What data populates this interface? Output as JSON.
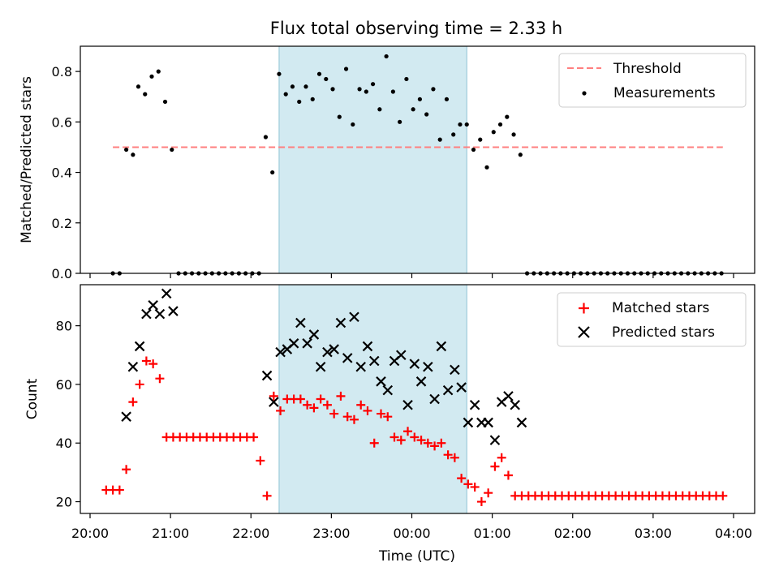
{
  "title": "Flux total observing time = 2.33 h",
  "colors": {
    "threshold": "#ff7f7f",
    "measurement": "#000000",
    "matched": "#ff0000",
    "predicted": "#000000",
    "window": "#add8e6"
  },
  "chart_data": [
    {
      "type": "scatter",
      "ylabel": "Matched/Predicted stars",
      "xlabel": "",
      "ylim": [
        0,
        0.9
      ],
      "yticks": [
        "0.0",
        "0.2",
        "0.4",
        "0.6",
        "0.8"
      ],
      "xlim": [
        "20:00",
        "04:00"
      ],
      "observing_window": [
        "22:21",
        "00:41"
      ],
      "legend": {
        "position": "top-right",
        "entries": [
          "Threshold",
          "Measurements"
        ]
      },
      "threshold": {
        "name": "Threshold",
        "y": 0.5,
        "x": [
          "20:17",
          "03:52"
        ]
      },
      "series": [
        {
          "name": "Measurements",
          "points": [
            [
              "20:17",
              0.0
            ],
            [
              "20:22",
              0.0
            ],
            [
              "20:27",
              0.49
            ],
            [
              "20:32",
              0.47
            ],
            [
              "20:36",
              0.74
            ],
            [
              "20:41",
              0.71
            ],
            [
              "20:46",
              0.78
            ],
            [
              "20:51",
              0.8
            ],
            [
              "20:56",
              0.68
            ],
            [
              "21:01",
              0.49
            ],
            [
              "21:06",
              0.0
            ],
            [
              "21:11",
              0.0
            ],
            [
              "21:16",
              0.0
            ],
            [
              "21:21",
              0.0
            ],
            [
              "21:26",
              0.0
            ],
            [
              "21:31",
              0.0
            ],
            [
              "21:36",
              0.0
            ],
            [
              "21:41",
              0.0
            ],
            [
              "21:46",
              0.0
            ],
            [
              "21:51",
              0.0
            ],
            [
              "21:56",
              0.0
            ],
            [
              "22:01",
              0.0
            ],
            [
              "22:06",
              0.0
            ],
            [
              "22:11",
              0.54
            ],
            [
              "22:16",
              0.4
            ],
            [
              "22:21",
              0.79
            ],
            [
              "22:26",
              0.71
            ],
            [
              "22:31",
              0.74
            ],
            [
              "22:36",
              0.68
            ],
            [
              "22:41",
              0.74
            ],
            [
              "22:46",
              0.69
            ],
            [
              "22:51",
              0.79
            ],
            [
              "22:56",
              0.77
            ],
            [
              "23:01",
              0.73
            ],
            [
              "23:06",
              0.62
            ],
            [
              "23:11",
              0.81
            ],
            [
              "23:16",
              0.59
            ],
            [
              "23:21",
              0.73
            ],
            [
              "23:26",
              0.72
            ],
            [
              "23:31",
              0.75
            ],
            [
              "23:36",
              0.65
            ],
            [
              "23:41",
              0.86
            ],
            [
              "23:46",
              0.72
            ],
            [
              "23:51",
              0.6
            ],
            [
              "23:56",
              0.77
            ],
            [
              "00:01",
              0.65
            ],
            [
              "00:06",
              0.69
            ],
            [
              "00:11",
              0.63
            ],
            [
              "00:16",
              0.73
            ],
            [
              "00:21",
              0.53
            ],
            [
              "00:26",
              0.69
            ],
            [
              "00:31",
              0.55
            ],
            [
              "00:36",
              0.59
            ],
            [
              "00:41",
              0.59
            ],
            [
              "00:46",
              0.49
            ],
            [
              "00:51",
              0.53
            ],
            [
              "00:56",
              0.42
            ],
            [
              "01:01",
              0.56
            ],
            [
              "01:06",
              0.59
            ],
            [
              "01:11",
              0.62
            ],
            [
              "01:16",
              0.55
            ],
            [
              "01:21",
              0.47
            ],
            [
              "01:26",
              0.0
            ],
            [
              "01:31",
              0.0
            ],
            [
              "01:36",
              0.0
            ],
            [
              "01:41",
              0.0
            ],
            [
              "01:46",
              0.0
            ],
            [
              "01:51",
              0.0
            ],
            [
              "01:56",
              0.0
            ],
            [
              "02:01",
              0.0
            ],
            [
              "02:06",
              0.0
            ],
            [
              "02:11",
              0.0
            ],
            [
              "02:16",
              0.0
            ],
            [
              "02:21",
              0.0
            ],
            [
              "02:26",
              0.0
            ],
            [
              "02:31",
              0.0
            ],
            [
              "02:36",
              0.0
            ],
            [
              "02:41",
              0.0
            ],
            [
              "02:46",
              0.0
            ],
            [
              "02:51",
              0.0
            ],
            [
              "02:56",
              0.0
            ],
            [
              "03:01",
              0.0
            ],
            [
              "03:06",
              0.0
            ],
            [
              "03:11",
              0.0
            ],
            [
              "03:16",
              0.0
            ],
            [
              "03:21",
              0.0
            ],
            [
              "03:26",
              0.0
            ],
            [
              "03:31",
              0.0
            ],
            [
              "03:36",
              0.0
            ],
            [
              "03:41",
              0.0
            ],
            [
              "03:46",
              0.0
            ],
            [
              "03:51",
              0.0
            ]
          ]
        }
      ]
    },
    {
      "type": "scatter",
      "ylabel": "Count",
      "xlabel": "Time (UTC)",
      "ylim": [
        16,
        94
      ],
      "yticks": [
        "20",
        "40",
        "60",
        "80"
      ],
      "xlim": [
        "20:00",
        "04:00"
      ],
      "xticks": [
        "20:00",
        "21:00",
        "22:00",
        "23:00",
        "00:00",
        "01:00",
        "02:00",
        "03:00",
        "04:00"
      ],
      "observing_window": [
        "22:21",
        "00:41"
      ],
      "legend": {
        "position": "top-right",
        "entries": [
          "Matched stars",
          "Predicted stars"
        ]
      },
      "series": [
        {
          "name": "Matched stars",
          "points": [
            [
              "20:12",
              24
            ],
            [
              "20:17",
              24
            ],
            [
              "20:22",
              24
            ],
            [
              "20:27",
              31
            ],
            [
              "20:32",
              54
            ],
            [
              "20:37",
              60
            ],
            [
              "20:42",
              68
            ],
            [
              "20:47",
              67
            ],
            [
              "20:52",
              62
            ],
            [
              "20:57",
              42
            ],
            [
              "21:02",
              42
            ],
            [
              "21:07",
              42
            ],
            [
              "21:12",
              42
            ],
            [
              "21:17",
              42
            ],
            [
              "21:22",
              42
            ],
            [
              "21:27",
              42
            ],
            [
              "21:32",
              42
            ],
            [
              "21:37",
              42
            ],
            [
              "21:42",
              42
            ],
            [
              "21:47",
              42
            ],
            [
              "21:52",
              42
            ],
            [
              "21:57",
              42
            ],
            [
              "22:02",
              42
            ],
            [
              "22:07",
              34
            ],
            [
              "22:12",
              22
            ],
            [
              "22:17",
              56
            ],
            [
              "22:22",
              51
            ],
            [
              "22:27",
              55
            ],
            [
              "22:32",
              55
            ],
            [
              "22:37",
              55
            ],
            [
              "22:42",
              53
            ],
            [
              "22:47",
              52
            ],
            [
              "22:52",
              55
            ],
            [
              "22:57",
              53
            ],
            [
              "23:02",
              50
            ],
            [
              "23:07",
              56
            ],
            [
              "23:12",
              49
            ],
            [
              "23:17",
              48
            ],
            [
              "23:22",
              53
            ],
            [
              "23:27",
              51
            ],
            [
              "23:32",
              40
            ],
            [
              "23:37",
              50
            ],
            [
              "23:42",
              49
            ],
            [
              "23:47",
              42
            ],
            [
              "23:52",
              41
            ],
            [
              "23:57",
              44
            ],
            [
              "00:02",
              42
            ],
            [
              "00:07",
              41
            ],
            [
              "00:12",
              40
            ],
            [
              "00:17",
              39
            ],
            [
              "00:22",
              40
            ],
            [
              "00:27",
              36
            ],
            [
              "00:32",
              35
            ],
            [
              "00:37",
              28
            ],
            [
              "00:42",
              26
            ],
            [
              "00:47",
              25
            ],
            [
              "00:52",
              20
            ],
            [
              "00:57",
              23
            ],
            [
              "01:02",
              32
            ],
            [
              "01:07",
              35
            ],
            [
              "01:12",
              29
            ],
            [
              "01:17",
              22
            ],
            [
              "01:22",
              22
            ],
            [
              "01:27",
              22
            ],
            [
              "01:32",
              22
            ],
            [
              "01:37",
              22
            ],
            [
              "01:42",
              22
            ],
            [
              "01:47",
              22
            ],
            [
              "01:52",
              22
            ],
            [
              "01:57",
              22
            ],
            [
              "02:02",
              22
            ],
            [
              "02:07",
              22
            ],
            [
              "02:12",
              22
            ],
            [
              "02:17",
              22
            ],
            [
              "02:22",
              22
            ],
            [
              "02:27",
              22
            ],
            [
              "02:32",
              22
            ],
            [
              "02:37",
              22
            ],
            [
              "02:42",
              22
            ],
            [
              "02:47",
              22
            ],
            [
              "02:52",
              22
            ],
            [
              "02:57",
              22
            ],
            [
              "03:02",
              22
            ],
            [
              "03:07",
              22
            ],
            [
              "03:12",
              22
            ],
            [
              "03:17",
              22
            ],
            [
              "03:22",
              22
            ],
            [
              "03:27",
              22
            ],
            [
              "03:32",
              22
            ],
            [
              "03:37",
              22
            ],
            [
              "03:42",
              22
            ],
            [
              "03:47",
              22
            ],
            [
              "03:52",
              22
            ]
          ]
        },
        {
          "name": "Predicted stars",
          "points": [
            [
              "20:27",
              49
            ],
            [
              "20:32",
              66
            ],
            [
              "20:37",
              73
            ],
            [
              "20:42",
              84
            ],
            [
              "20:47",
              87
            ],
            [
              "20:52",
              84
            ],
            [
              "20:57",
              91
            ],
            [
              "21:02",
              85
            ],
            [
              "22:12",
              63
            ],
            [
              "22:17",
              54
            ],
            [
              "22:22",
              71
            ],
            [
              "22:27",
              72
            ],
            [
              "22:32",
              74
            ],
            [
              "22:37",
              81
            ],
            [
              "22:42",
              74
            ],
            [
              "22:47",
              77
            ],
            [
              "22:52",
              66
            ],
            [
              "22:57",
              71
            ],
            [
              "23:02",
              72
            ],
            [
              "23:07",
              81
            ],
            [
              "23:12",
              69
            ],
            [
              "23:17",
              83
            ],
            [
              "23:22",
              66
            ],
            [
              "23:27",
              73
            ],
            [
              "23:32",
              68
            ],
            [
              "23:37",
              61
            ],
            [
              "23:42",
              58
            ],
            [
              "23:47",
              68
            ],
            [
              "23:52",
              70
            ],
            [
              "23:57",
              53
            ],
            [
              "00:02",
              67
            ],
            [
              "00:07",
              61
            ],
            [
              "00:12",
              66
            ],
            [
              "00:17",
              55
            ],
            [
              "00:22",
              73
            ],
            [
              "00:27",
              58
            ],
            [
              "00:32",
              65
            ],
            [
              "00:37",
              59
            ],
            [
              "00:42",
              47
            ],
            [
              "00:47",
              53
            ],
            [
              "00:52",
              47
            ],
            [
              "00:57",
              47
            ],
            [
              "01:02",
              41
            ],
            [
              "01:07",
              54
            ],
            [
              "01:12",
              56
            ],
            [
              "01:17",
              53
            ],
            [
              "01:22",
              47
            ]
          ]
        }
      ]
    }
  ]
}
